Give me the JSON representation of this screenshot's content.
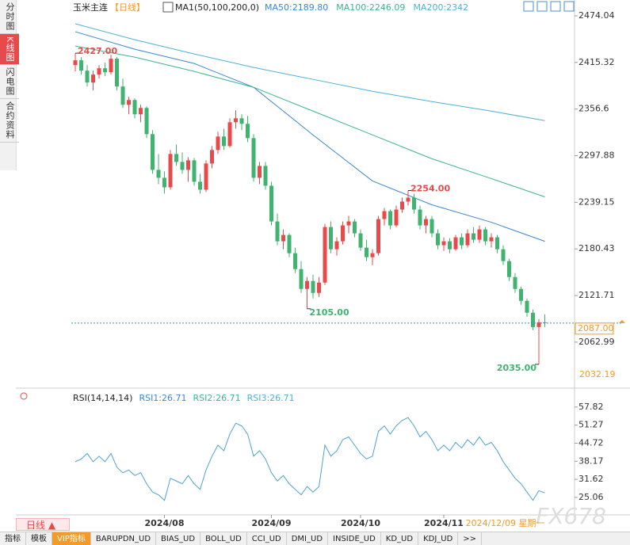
{
  "chart_data": {
    "type": "candlestick",
    "header": {
      "symbol": "玉米主连",
      "period": "【日线】",
      "ma_label": "MA1(50,100,200,0)"
    },
    "sidebar_tabs": [
      "分时图",
      "K线图",
      "闪电图",
      "合约资料"
    ],
    "bottom_tabs": [
      "指标",
      "模板",
      "VIP指标",
      "BARUPDN_UD",
      "BIAS_UD",
      "BOLL_UD",
      "CCI_UD",
      "DMI_UD",
      "INSIDE_UD",
      "KD_UD",
      "KDJ_UD",
      ">>"
    ],
    "period_button": "日线 ▲",
    "watermark": "FX678",
    "up_color": "#e84a4a",
    "down_color": "#3fb36f",
    "xlim": [
      -0.67,
      84
    ],
    "ylim": [
      2007,
      2484
    ],
    "yticks": [
      2474.04,
      2415.32,
      2356.6,
      2297.88,
      2239.15,
      2180.43,
      2121.71,
      2062.99
    ],
    "xticks": [
      {
        "value": 15,
        "label": "2024/08"
      },
      {
        "value": 33,
        "label": "2024/09"
      },
      {
        "value": 48,
        "label": "2024/10"
      },
      {
        "value": 62,
        "label": "2024/11"
      }
    ],
    "cursor_date": {
      "value": 79,
      "label": "2024/12/09 星期一"
    },
    "last_price": {
      "value": 2087,
      "label": "2087.00"
    },
    "lower_price": 2032.19,
    "annotations": [
      {
        "index": 0,
        "value": 2427,
        "label": "2427.00",
        "color": "#e84a4a"
      },
      {
        "index": 56,
        "value": 2254,
        "label": "2254.00",
        "color": "#e84a4a"
      },
      {
        "index": 39,
        "value": 2105,
        "label": "2105.00",
        "color": "#3fb36f"
      },
      {
        "index": 78,
        "value": 2035,
        "label": "2035.00",
        "color": "#3fb36f"
      }
    ],
    "candles": [
      [
        2412,
        2427,
        2404,
        2418
      ],
      [
        2418,
        2422,
        2400,
        2405
      ],
      [
        2405,
        2412,
        2385,
        2390
      ],
      [
        2390,
        2405,
        2380,
        2400
      ],
      [
        2400,
        2412,
        2395,
        2408
      ],
      [
        2408,
        2415,
        2398,
        2403
      ],
      [
        2403,
        2425,
        2400,
        2420
      ],
      [
        2420,
        2422,
        2380,
        2385
      ],
      [
        2385,
        2395,
        2358,
        2362
      ],
      [
        2362,
        2372,
        2350,
        2368
      ],
      [
        2368,
        2370,
        2345,
        2350
      ],
      [
        2350,
        2362,
        2340,
        2358
      ],
      [
        2358,
        2360,
        2320,
        2325
      ],
      [
        2325,
        2330,
        2275,
        2280
      ],
      [
        2280,
        2300,
        2262,
        2270
      ],
      [
        2270,
        2278,
        2250,
        2258
      ],
      [
        2258,
        2305,
        2255,
        2300
      ],
      [
        2300,
        2312,
        2285,
        2290
      ],
      [
        2290,
        2302,
        2275,
        2280
      ],
      [
        2280,
        2296,
        2265,
        2292
      ],
      [
        2292,
        2295,
        2260,
        2265
      ],
      [
        2265,
        2275,
        2250,
        2255
      ],
      [
        2255,
        2292,
        2252,
        2288
      ],
      [
        2288,
        2310,
        2282,
        2305
      ],
      [
        2305,
        2328,
        2300,
        2322
      ],
      [
        2322,
        2332,
        2305,
        2310
      ],
      [
        2310,
        2345,
        2308,
        2340
      ],
      [
        2340,
        2355,
        2332,
        2345
      ],
      [
        2345,
        2350,
        2330,
        2338
      ],
      [
        2338,
        2348,
        2315,
        2320
      ],
      [
        2320,
        2325,
        2265,
        2270
      ],
      [
        2270,
        2290,
        2262,
        2285
      ],
      [
        2285,
        2290,
        2255,
        2260
      ],
      [
        2260,
        2265,
        2210,
        2215
      ],
      [
        2215,
        2225,
        2185,
        2190
      ],
      [
        2190,
        2205,
        2180,
        2198
      ],
      [
        2198,
        2200,
        2170,
        2175
      ],
      [
        2175,
        2182,
        2150,
        2155
      ],
      [
        2155,
        2165,
        2125,
        2130
      ],
      [
        2130,
        2145,
        2105,
        2140
      ],
      [
        2140,
        2148,
        2118,
        2125
      ],
      [
        2125,
        2145,
        2120,
        2138
      ],
      [
        2138,
        2212,
        2135,
        2208
      ],
      [
        2208,
        2215,
        2175,
        2180
      ],
      [
        2180,
        2195,
        2172,
        2190
      ],
      [
        2190,
        2215,
        2186,
        2210
      ],
      [
        2210,
        2222,
        2200,
        2215
      ],
      [
        2215,
        2218,
        2195,
        2200
      ],
      [
        2200,
        2205,
        2178,
        2182
      ],
      [
        2182,
        2192,
        2165,
        2170
      ],
      [
        2170,
        2180,
        2160,
        2175
      ],
      [
        2175,
        2222,
        2172,
        2218
      ],
      [
        2218,
        2232,
        2210,
        2228
      ],
      [
        2228,
        2230,
        2205,
        2210
      ],
      [
        2210,
        2235,
        2208,
        2230
      ],
      [
        2230,
        2245,
        2226,
        2240
      ],
      [
        2240,
        2254,
        2235,
        2245
      ],
      [
        2245,
        2250,
        2225,
        2230
      ],
      [
        2230,
        2235,
        2205,
        2210
      ],
      [
        2210,
        2222,
        2200,
        2218
      ],
      [
        2218,
        2222,
        2195,
        2200
      ],
      [
        2200,
        2205,
        2180,
        2185
      ],
      [
        2185,
        2195,
        2178,
        2190
      ],
      [
        2190,
        2194,
        2175,
        2180
      ],
      [
        2180,
        2198,
        2178,
        2195
      ],
      [
        2195,
        2200,
        2180,
        2185
      ],
      [
        2185,
        2205,
        2182,
        2200
      ],
      [
        2200,
        2208,
        2188,
        2192
      ],
      [
        2192,
        2210,
        2188,
        2205
      ],
      [
        2205,
        2208,
        2185,
        2190
      ],
      [
        2190,
        2200,
        2182,
        2195
      ],
      [
        2195,
        2198,
        2175,
        2180
      ],
      [
        2180,
        2185,
        2160,
        2165
      ],
      [
        2165,
        2168,
        2140,
        2145
      ],
      [
        2145,
        2150,
        2125,
        2130
      ],
      [
        2130,
        2133,
        2110,
        2115
      ],
      [
        2115,
        2118,
        2095,
        2100
      ],
      [
        2100,
        2104,
        2078,
        2082
      ],
      [
        2082,
        2092,
        2035,
        2088
      ],
      [
        2088,
        2098,
        2082,
        2087
      ]
    ],
    "ma_x": [
      0,
      10,
      20,
      30,
      40,
      50,
      60,
      70,
      79
    ],
    "ma_series": [
      {
        "name": "MA50:2189.80",
        "color": "#3b86d8",
        "values": [
          2454,
          2432,
          2414,
          2384,
          2324,
          2266,
          2236,
          2214,
          2190
        ]
      },
      {
        "name": "MA100:2246.09",
        "color": "#3db58c",
        "values": [
          2436,
          2422,
          2404,
          2384,
          2354,
          2324,
          2294,
          2269,
          2246
        ]
      },
      {
        "name": "MA200:2342",
        "color": "#4fb0d6",
        "values": [
          2464,
          2444,
          2426,
          2409,
          2394,
          2379,
          2366,
          2354,
          2342
        ]
      }
    ],
    "rsi": {
      "title": "RSI(14,14,14)",
      "labels": [
        {
          "text": "RSI1:26.71",
          "color": "#3b86d8"
        },
        {
          "text": "RSI2:26.71",
          "color": "#3db58c"
        },
        {
          "text": "RSI3:26.71",
          "color": "#4fb0d6"
        }
      ],
      "color": "#4fa3cc",
      "ylim": [
        19.3,
        61.8
      ],
      "yticks": [
        57.82,
        51.27,
        44.72,
        38.17,
        31.62,
        25.06
      ],
      "values": [
        38,
        39,
        41,
        38,
        40,
        38,
        41,
        36,
        34,
        35,
        33,
        34,
        30,
        27,
        26,
        24,
        32,
        31,
        30,
        33,
        30,
        28,
        35,
        40,
        44,
        42,
        48,
        52,
        51,
        48,
        40,
        42,
        39,
        34,
        31,
        33,
        30,
        28,
        26,
        29,
        27,
        29,
        44,
        40,
        42,
        46,
        47,
        44,
        41,
        39,
        40,
        49,
        51,
        48,
        51,
        53,
        54,
        51,
        47,
        49,
        46,
        42,
        44,
        42,
        45,
        43,
        46,
        44,
        47,
        44,
        45,
        42,
        38,
        35,
        32,
        30,
        27,
        24,
        27.5,
        26.71
      ]
    }
  }
}
